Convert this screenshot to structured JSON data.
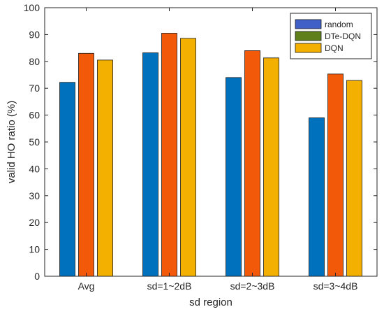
{
  "chart_data": {
    "type": "bar",
    "title": "",
    "xlabel": "sd region",
    "ylabel": "valid HO ratio (%)",
    "ylim": [
      0,
      100
    ],
    "yticks": [
      0,
      10,
      20,
      30,
      40,
      50,
      60,
      70,
      80,
      90,
      100
    ],
    "categories": [
      "Avg",
      "sd=1~2dB",
      "sd=2~3dB",
      "sd=3~4dB"
    ],
    "series": [
      {
        "name": "random",
        "values": [
          72.2,
          83.2,
          74.0,
          59.0
        ],
        "color": "#0072BD",
        "legend_color": "#4060C8"
      },
      {
        "name": "DTe-DQN",
        "values": [
          83.0,
          90.5,
          84.0,
          75.3
        ],
        "color": "#F25A0A",
        "legend_color": "#5E7F1A"
      },
      {
        "name": "DQN",
        "values": [
          80.5,
          88.6,
          81.3,
          72.9
        ],
        "color": "#F4B000",
        "legend_color": "#F4B000"
      }
    ],
    "grid": false,
    "legend_position": "top-right"
  }
}
